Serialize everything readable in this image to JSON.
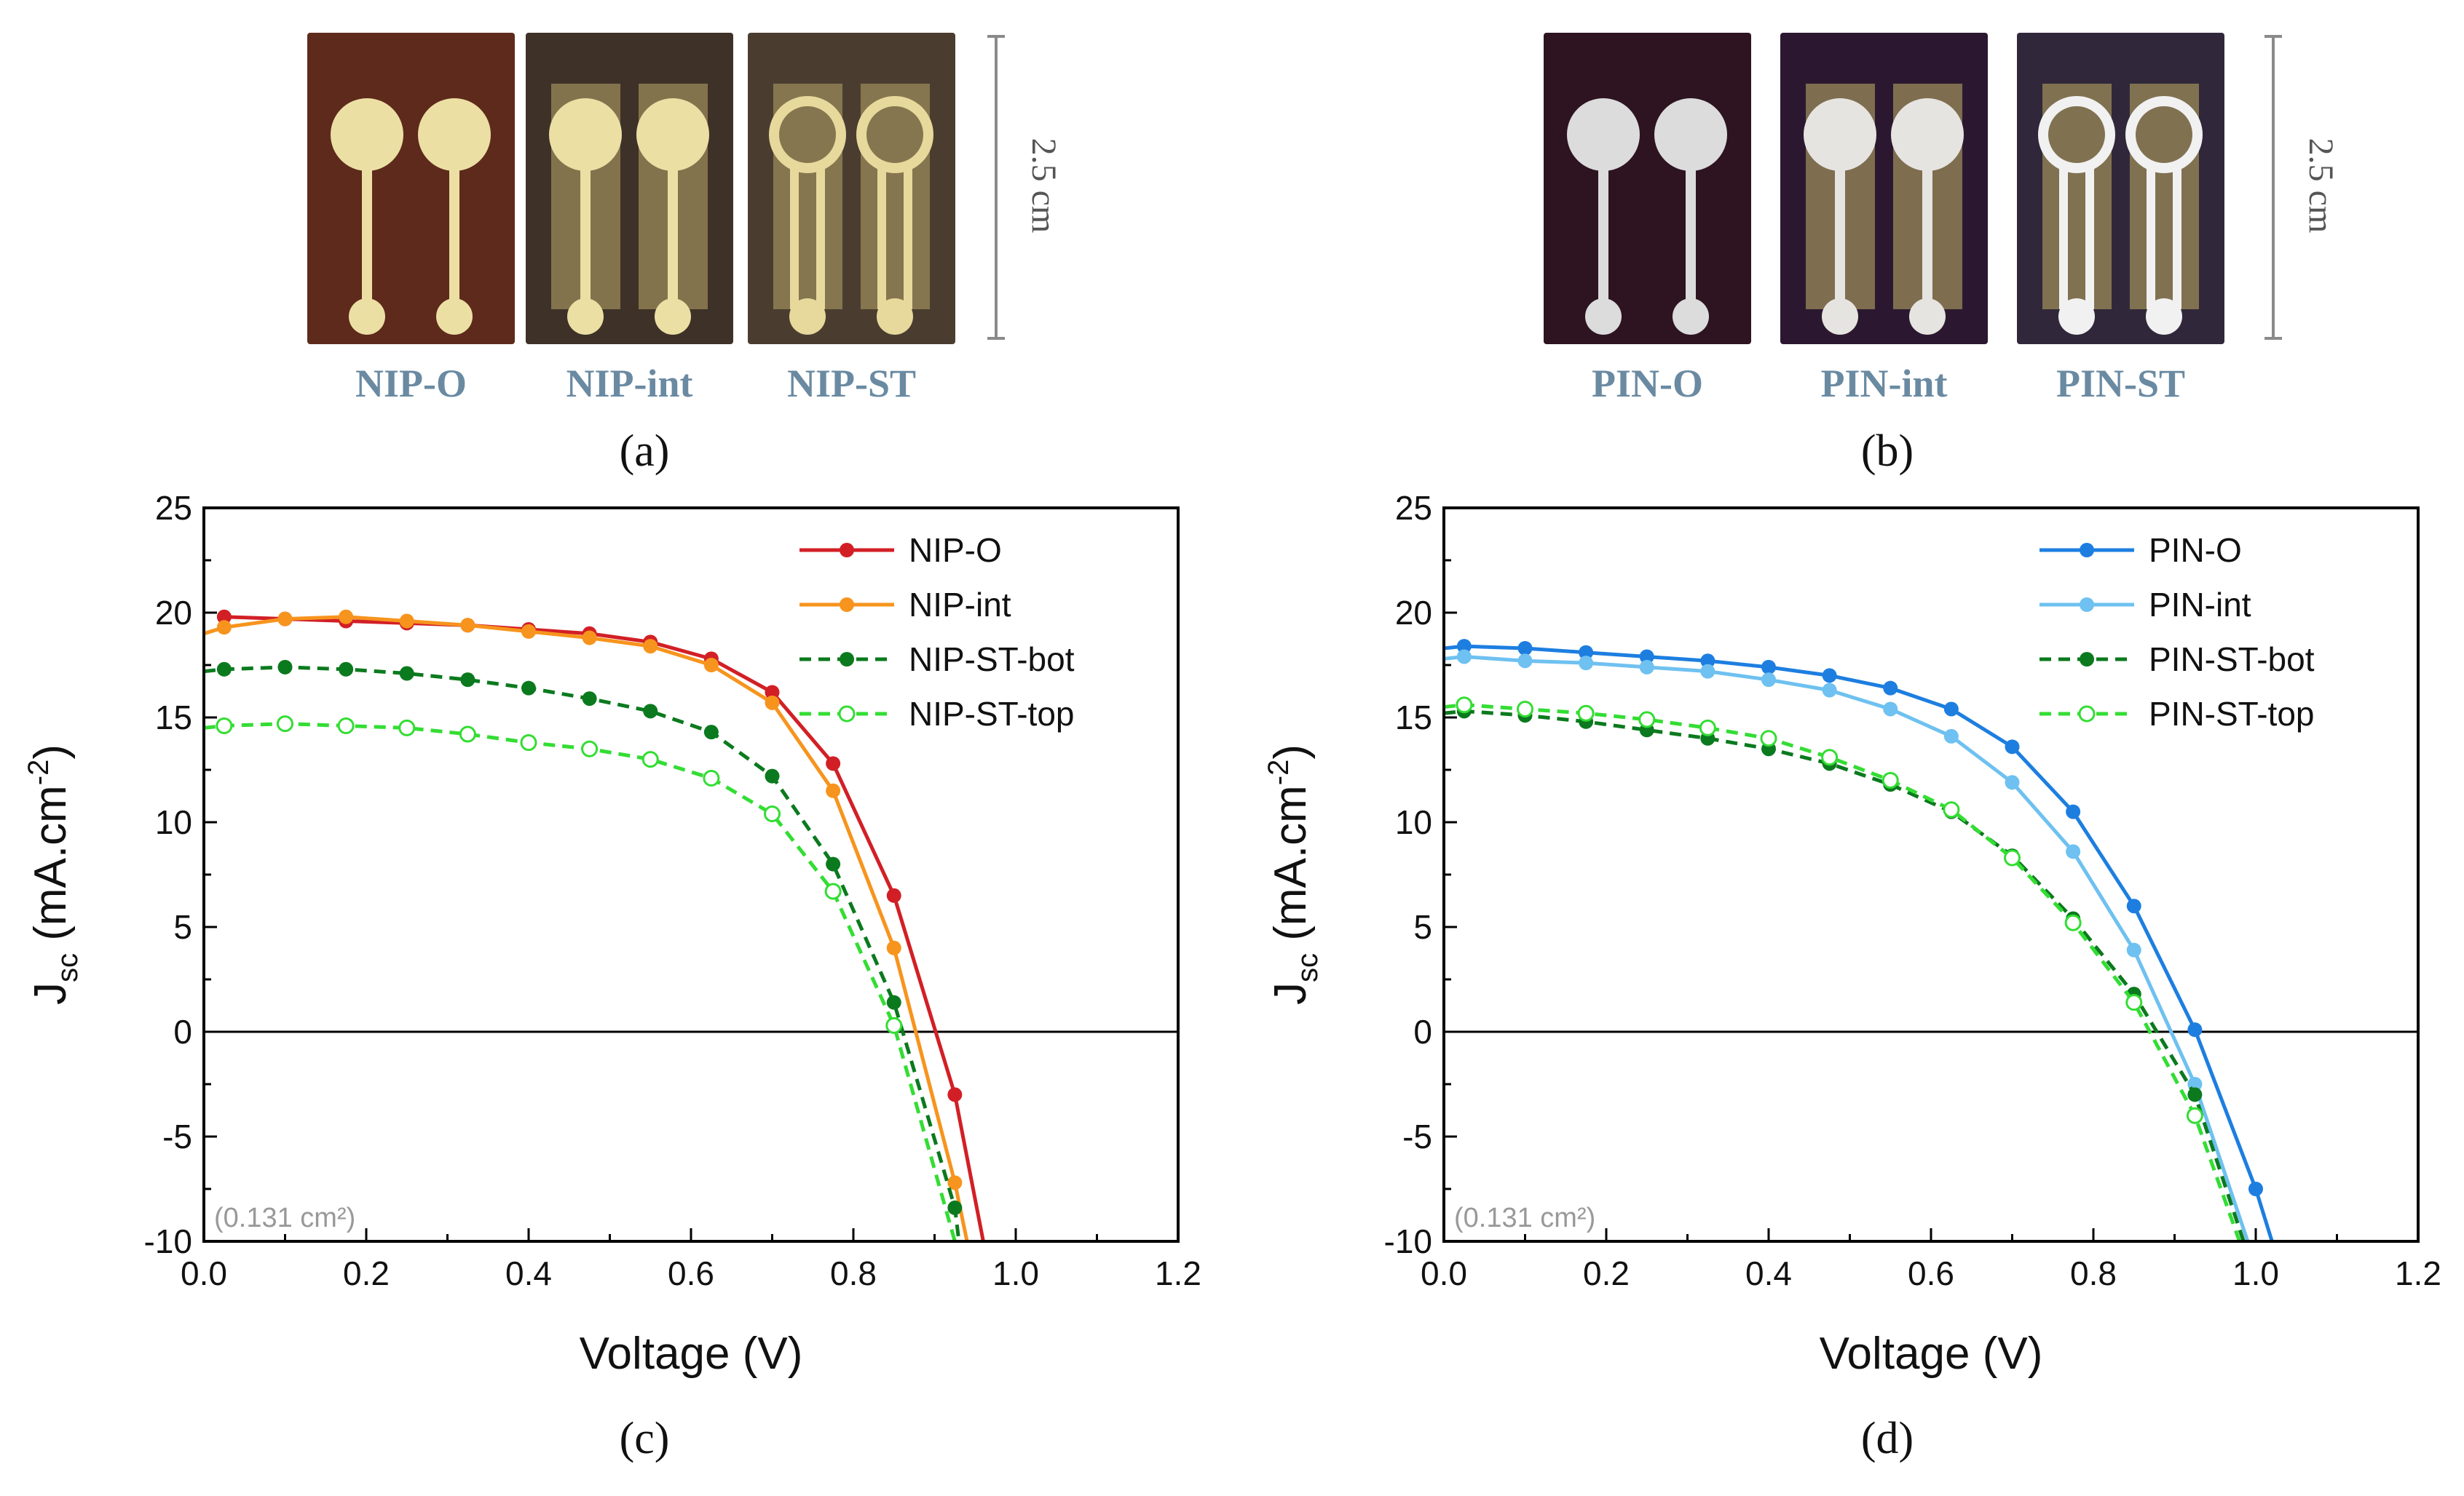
{
  "panel_labels": {
    "a": "(a)",
    "b": "(b)",
    "c": "(c)",
    "d": "(d)"
  },
  "photos": {
    "a": {
      "scale_label": "2.5 cm",
      "devices": [
        {
          "label": "NIP-O",
          "substrate": "#5e2a1c",
          "contact": "#ecdfa4",
          "variant": "opaque"
        },
        {
          "label": "NIP-int",
          "substrate": "#3d3128",
          "contact": "#ecdfa4",
          "variant": "int"
        },
        {
          "label": "NIP-ST",
          "substrate": "#4a3d30",
          "contact": "#e7d99c",
          "variant": "st"
        }
      ]
    },
    "b": {
      "scale_label": "2.5 cm",
      "devices": [
        {
          "label": "PIN-O",
          "substrate": "#2d1420",
          "contact": "#dcdcdc",
          "variant": "opaque"
        },
        {
          "label": "PIN-int",
          "substrate": "#2b1830",
          "contact": "#e6e4e0",
          "variant": "int"
        },
        {
          "label": "PIN-ST",
          "substrate": "#30283a",
          "contact": "#f1f1f1",
          "variant": "st"
        }
      ]
    },
    "label_color": "#6a8aa2"
  },
  "chart_data": [
    {
      "type": "line",
      "panel": "c",
      "xlabel": "Voltage (V)",
      "ylabel": "J",
      "ylabel_sub": "sc",
      "ylabel_rest": " (mA.cm",
      "ylabel_sup": "-2",
      "ylabel_end": ")",
      "xlim": [
        0.0,
        1.2
      ],
      "ylim": [
        -10,
        25
      ],
      "xticks": [
        "0.0",
        "0.2",
        "0.4",
        "0.6",
        "0.8",
        "1.0",
        "1.2"
      ],
      "yticks": [
        "-10",
        "-5",
        "0",
        "5",
        "10",
        "15",
        "20",
        "25"
      ],
      "annotation": "(0.131 cm²)",
      "legend_position": "top-right",
      "series": [
        {
          "name": "NIP-O",
          "color": "#d21f26",
          "dash": false,
          "marker": "filled",
          "x": [
            0.025,
            0.1,
            0.175,
            0.25,
            0.325,
            0.4,
            0.475,
            0.55,
            0.625,
            0.7,
            0.775,
            0.85,
            0.925,
            0.96
          ],
          "y": [
            19.8,
            19.7,
            19.6,
            19.5,
            19.4,
            19.2,
            19.0,
            18.6,
            17.8,
            16.2,
            12.8,
            6.5,
            -3.0,
            -10.0
          ]
        },
        {
          "name": "NIP-int",
          "color": "#f7941d",
          "dash": false,
          "marker": "filled",
          "x": [
            0.0,
            0.025,
            0.1,
            0.175,
            0.25,
            0.325,
            0.4,
            0.475,
            0.55,
            0.625,
            0.7,
            0.775,
            0.85,
            0.925,
            0.94
          ],
          "y": [
            19.0,
            19.3,
            19.7,
            19.8,
            19.6,
            19.4,
            19.1,
            18.8,
            18.4,
            17.5,
            15.7,
            11.5,
            4.0,
            -7.2,
            -10.0
          ]
        },
        {
          "name": "NIP-ST-bot",
          "color": "#0b7a1e",
          "dash": true,
          "marker": "filled",
          "x": [
            0.0,
            0.025,
            0.1,
            0.175,
            0.25,
            0.325,
            0.4,
            0.475,
            0.55,
            0.625,
            0.7,
            0.775,
            0.85,
            0.925,
            0.93
          ],
          "y": [
            17.2,
            17.3,
            17.4,
            17.3,
            17.1,
            16.8,
            16.4,
            15.9,
            15.3,
            14.3,
            12.2,
            8.0,
            1.4,
            -8.4,
            -10.0
          ]
        },
        {
          "name": "NIP-ST-top",
          "color": "#33dd33",
          "dash": true,
          "marker": "open",
          "x": [
            0.0,
            0.025,
            0.1,
            0.175,
            0.25,
            0.325,
            0.4,
            0.475,
            0.55,
            0.625,
            0.7,
            0.775,
            0.85,
            0.925
          ],
          "y": [
            14.5,
            14.6,
            14.7,
            14.6,
            14.5,
            14.2,
            13.8,
            13.5,
            13.0,
            12.1,
            10.4,
            6.7,
            0.3,
            -10.0
          ]
        }
      ]
    },
    {
      "type": "line",
      "panel": "d",
      "xlabel": "Voltage (V)",
      "ylabel": "J",
      "ylabel_sub": "sc",
      "ylabel_rest": " (mA.cm",
      "ylabel_sup": "-2",
      "ylabel_end": ")",
      "xlim": [
        0.0,
        1.2
      ],
      "ylim": [
        -10,
        25
      ],
      "xticks": [
        "0.0",
        "0.2",
        "0.4",
        "0.6",
        "0.8",
        "1.0",
        "1.2"
      ],
      "yticks": [
        "-10",
        "-5",
        "0",
        "5",
        "10",
        "15",
        "20",
        "25"
      ],
      "annotation": "(0.131 cm²)",
      "legend_position": "top-right",
      "series": [
        {
          "name": "PIN-O",
          "color": "#1d7ee0",
          "dash": false,
          "marker": "filled",
          "x": [
            0.0,
            0.025,
            0.1,
            0.175,
            0.25,
            0.325,
            0.4,
            0.475,
            0.55,
            0.625,
            0.7,
            0.775,
            0.85,
            0.925,
            1.0,
            1.02
          ],
          "y": [
            18.3,
            18.4,
            18.3,
            18.1,
            17.9,
            17.7,
            17.4,
            17.0,
            16.4,
            15.4,
            13.6,
            10.5,
            6.0,
            0.1,
            -7.5,
            -10.0
          ]
        },
        {
          "name": "PIN-int",
          "color": "#6ec1f0",
          "dash": false,
          "marker": "filled",
          "x": [
            0.0,
            0.025,
            0.1,
            0.175,
            0.25,
            0.325,
            0.4,
            0.475,
            0.55,
            0.625,
            0.7,
            0.775,
            0.85,
            0.925,
            0.99
          ],
          "y": [
            17.8,
            17.9,
            17.7,
            17.6,
            17.4,
            17.2,
            16.8,
            16.3,
            15.4,
            14.1,
            11.9,
            8.6,
            3.9,
            -2.5,
            -10.0
          ]
        },
        {
          "name": "PIN-ST-bot",
          "color": "#0b7a1e",
          "dash": true,
          "marker": "filled",
          "x": [
            0.0,
            0.025,
            0.1,
            0.175,
            0.25,
            0.325,
            0.4,
            0.475,
            0.55,
            0.625,
            0.7,
            0.775,
            0.85,
            0.925,
            0.985
          ],
          "y": [
            15.2,
            15.3,
            15.1,
            14.8,
            14.4,
            14.0,
            13.5,
            12.8,
            11.8,
            10.5,
            8.4,
            5.4,
            1.8,
            -3.0,
            -10.0
          ]
        },
        {
          "name": "PIN-ST-top",
          "color": "#33dd33",
          "dash": true,
          "marker": "open",
          "x": [
            0.0,
            0.025,
            0.1,
            0.175,
            0.25,
            0.325,
            0.4,
            0.475,
            0.55,
            0.625,
            0.7,
            0.775,
            0.85,
            0.925,
            0.98
          ],
          "y": [
            15.5,
            15.6,
            15.4,
            15.2,
            14.9,
            14.5,
            14.0,
            13.1,
            12.0,
            10.6,
            8.3,
            5.2,
            1.4,
            -4.0,
            -10.0
          ]
        }
      ]
    }
  ]
}
